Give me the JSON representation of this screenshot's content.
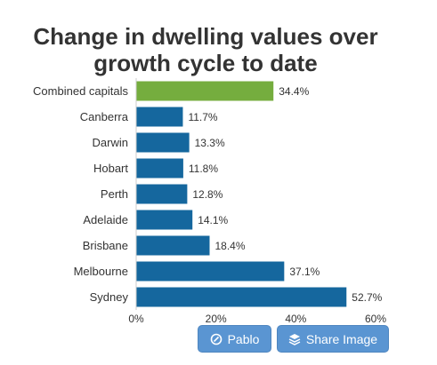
{
  "chart_data": {
    "type": "bar",
    "orientation": "horizontal",
    "title": "Change in dwelling values over growth cycle to date",
    "title_lines": [
      "Change in dwelling values over",
      "growth cycle to date"
    ],
    "categories": [
      "Combined capitals",
      "Canberra",
      "Darwin",
      "Hobart",
      "Perth",
      "Adelaide",
      "Brisbane",
      "Melbourne",
      "Sydney"
    ],
    "values": [
      34.4,
      11.7,
      13.3,
      11.8,
      12.8,
      14.1,
      18.4,
      37.1,
      52.7
    ],
    "value_labels": [
      "34.4%",
      "11.7%",
      "13.3%",
      "11.8%",
      "12.8%",
      "14.1%",
      "18.4%",
      "37.1%",
      "52.7%"
    ],
    "highlight_category": "Combined capitals",
    "xlim": [
      0,
      60
    ],
    "x_ticks": [
      0,
      20,
      40,
      60
    ],
    "x_tick_labels": [
      "0%",
      "20%",
      "40%",
      "60%"
    ],
    "xlabel": "",
    "ylabel": "",
    "grid": false,
    "colors": {
      "bar": "#15679e",
      "highlight": "#75ad3e"
    }
  },
  "buttons": {
    "pablo_label": "Pablo",
    "pablo_icon": "pablo-icon",
    "share_label": "Share Image",
    "share_icon": "layers-icon",
    "color": "#5a95d2"
  }
}
